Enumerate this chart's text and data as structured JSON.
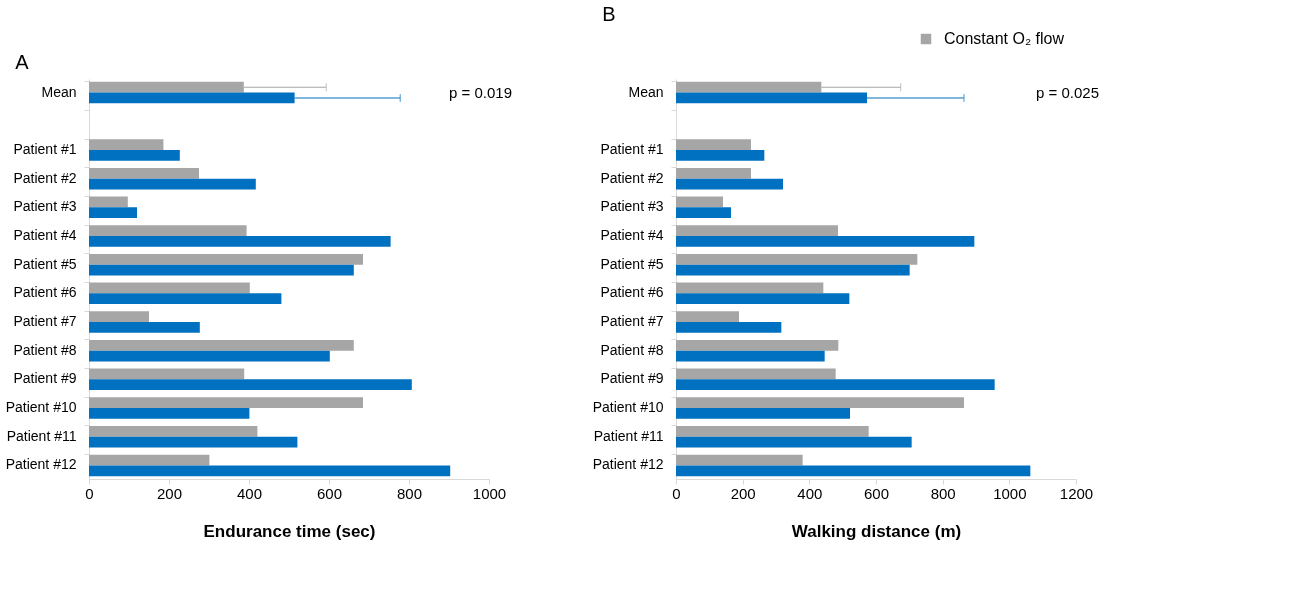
{
  "chart_data": [
    {
      "type": "bar",
      "orientation": "horizontal",
      "title": "A",
      "xlabel": "Endurance time (sec)",
      "categories": [
        "Mean",
        null,
        "Patient #1",
        "Patient #2",
        "Patient #3",
        "Patient #4",
        "Patient #5",
        "Patient #6",
        "Patient #7",
        "Patient #8",
        "Patient #9",
        "Patient #10",
        "Patient #11",
        "Patient #12"
      ],
      "series": [
        {
          "color": "#a6a6a6",
          "values": [
            387,
            null,
            186,
            275,
            97,
            394,
            685,
            402,
            150,
            662,
            388,
            685,
            421,
            301
          ],
          "errors": [
            [
              387,
              593
            ],
            null,
            null,
            null,
            null,
            null,
            null,
            null,
            null,
            null,
            null,
            null,
            null,
            null
          ]
        },
        {
          "color": "#0070c0",
          "values": [
            514,
            null,
            227,
            417,
            120,
            754,
            662,
            481,
            277,
            602,
            807,
            401,
            521,
            903
          ],
          "errors": [
            [
              514,
              778
            ],
            null,
            null,
            null,
            null,
            null,
            null,
            null,
            null,
            null,
            null,
            null,
            null,
            null
          ]
        }
      ],
      "xlim": [
        0,
        1000
      ],
      "xticks": [
        0,
        200,
        400,
        600,
        800,
        1000
      ],
      "grid": false,
      "legend": false,
      "annotations": [
        "p = 0.019"
      ]
    },
    {
      "type": "bar",
      "orientation": "horizontal",
      "title": "B",
      "xlabel": "Walking distance (m)",
      "categories": [
        "Mean",
        null,
        "Patient #1",
        "Patient #2",
        "Patient #3",
        "Patient #4",
        "Patient #5",
        "Patient #6",
        "Patient #7",
        "Patient #8",
        "Patient #9",
        "Patient #10",
        "Patient #11",
        "Patient #12"
      ],
      "series": [
        {
          "name": "Constant O₂ flow",
          "color": "#a6a6a6",
          "values": [
            436,
            null,
            225,
            225,
            141,
            486,
            724,
            442,
            189,
            487,
            479,
            864,
            578,
            380
          ],
          "errors": [
            [
              436,
              674
            ],
            null,
            null,
            null,
            null,
            null,
            null,
            null,
            null,
            null,
            null,
            null,
            null,
            null
          ]
        },
        {
          "color": "#0070c0",
          "values": [
            573,
            null,
            265,
            321,
            165,
            895,
            701,
            520,
            316,
            446,
            956,
            522,
            707,
            1063
          ],
          "errors": [
            [
              573,
              864
            ],
            null,
            null,
            null,
            null,
            null,
            null,
            null,
            null,
            null,
            null,
            null,
            null,
            null
          ]
        }
      ],
      "xlim": [
        0,
        1200
      ],
      "xticks": [
        0,
        200,
        400,
        600,
        800,
        1000,
        1200
      ],
      "grid": false,
      "legend": "top right",
      "annotations": [
        "p = 0.025"
      ]
    }
  ]
}
